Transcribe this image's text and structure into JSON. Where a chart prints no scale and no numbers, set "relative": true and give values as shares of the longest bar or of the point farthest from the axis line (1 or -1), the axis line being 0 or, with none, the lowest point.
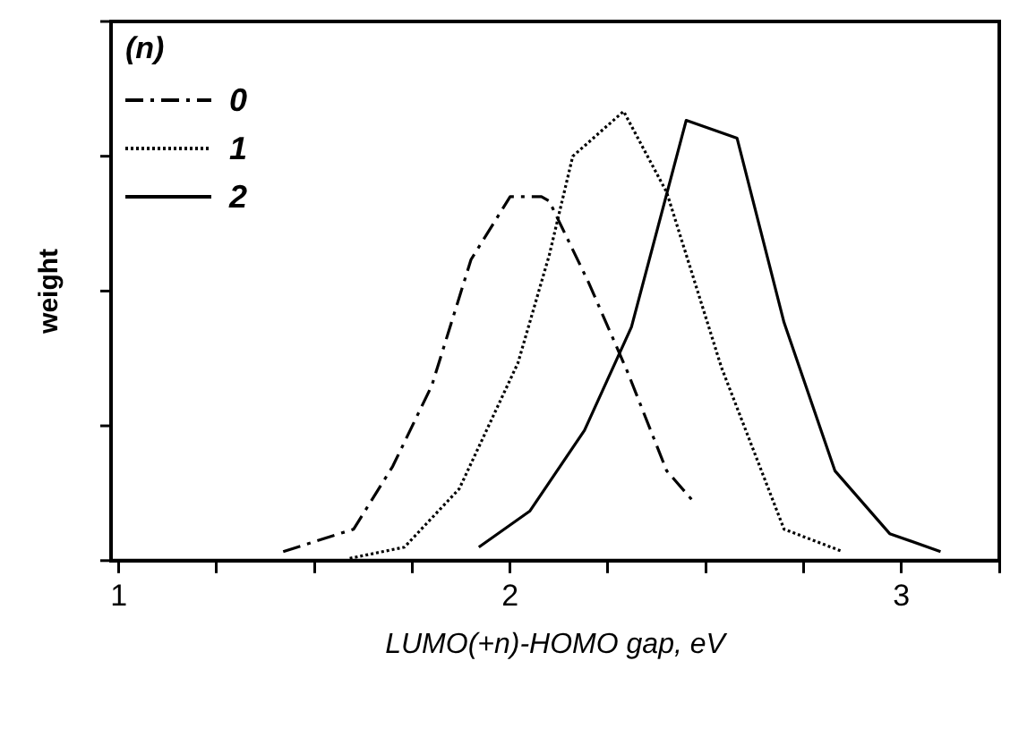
{
  "chart_data": {
    "type": "line",
    "relative": true,
    "xlabel": "LUMO(+n)-HOMO gap, eV",
    "ylabel": "weight",
    "legend_title": "(n)",
    "legend": "top left",
    "grid": false,
    "marker": "none",
    "xlim": [
      0.98,
      3.25
    ],
    "xticks": [
      1,
      {
        "value": 1.25,
        "label": null
      },
      {
        "value": 1.5,
        "label": null
      },
      {
        "value": 1.75,
        "label": null
      },
      2,
      {
        "value": 2.25,
        "label": null
      },
      {
        "value": 2.5,
        "label": null
      },
      {
        "value": 2.75,
        "label": null
      },
      3,
      {
        "value": 3.25,
        "label": null
      }
    ],
    "series": [
      {
        "name": "0",
        "color": "#000000",
        "line_style": "dashdot",
        "x": [
          1.42,
          1.6,
          1.7,
          1.8,
          1.9,
          2.0,
          2.08,
          2.1,
          2.2,
          2.3,
          2.4,
          2.47
        ],
        "values": [
          0.02,
          0.07,
          0.21,
          0.39,
          0.67,
          0.81,
          0.81,
          0.8,
          0.62,
          0.42,
          0.2,
          0.13
        ]
      },
      {
        "name": "1",
        "color": "#000000",
        "line_style": "dotted",
        "x": [
          1.59,
          1.73,
          1.87,
          2.02,
          2.1,
          2.16,
          2.29,
          2.4,
          2.54,
          2.7,
          2.85
        ],
        "values": [
          0.005,
          0.03,
          0.16,
          0.44,
          0.68,
          0.9,
          1.0,
          0.82,
          0.43,
          0.07,
          0.02
        ]
      },
      {
        "name": "2",
        "color": "#000000",
        "line_style": "solid",
        "x": [
          1.92,
          2.05,
          2.19,
          2.31,
          2.45,
          2.58,
          2.7,
          2.83,
          2.97,
          3.1
        ],
        "values": [
          0.03,
          0.11,
          0.29,
          0.52,
          0.98,
          0.94,
          0.53,
          0.2,
          0.06,
          0.02
        ]
      }
    ]
  }
}
